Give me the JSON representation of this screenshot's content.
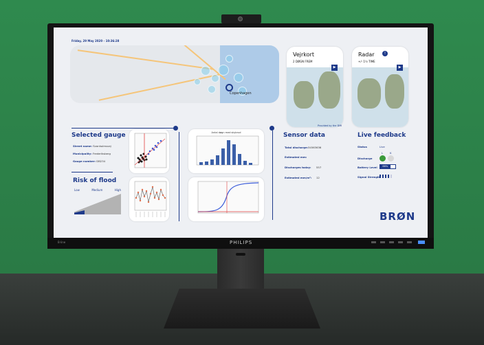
{
  "dashboard": {
    "date": "Friday, 29 May 2020 - 10:36:28",
    "map": {
      "city_label": "Copenhagen"
    },
    "weather_cards": [
      {
        "title": "Vejrkort",
        "subtitle": "2 DØGN FREM"
      },
      {
        "title": "Radar",
        "subtitle": "+/- 1½ TIME"
      }
    ],
    "provided_by": "Provided by the DMI",
    "selected_gauge": {
      "title": "Selected gauge",
      "street_label": "Street name:",
      "street_value": "Svanholmsvej",
      "municipality_label": "Municipality:",
      "municipality_value": "Frederiksberg",
      "gauge_label": "Gauge number:",
      "gauge_value": "DB234"
    },
    "risk": {
      "title": "Risk of flood",
      "levels": [
        "Low",
        "Medium",
        "High"
      ],
      "level_fraction": 0.22
    },
    "sensor": {
      "title": "Sensor data",
      "rows": [
        {
          "label": "Total discharge:",
          "value": "34563636"
        },
        {
          "label": "Estimated mm:",
          "value": ""
        },
        {
          "label": "Discharges today:",
          "value": "557"
        },
        {
          "label": "Estimated mm/m²:",
          "value": "12"
        }
      ]
    },
    "live": {
      "title": "Live feedback",
      "status_label": "Status",
      "status_value": "Live",
      "col_l": "L",
      "col_k": "K",
      "discharge_label": "Discharge",
      "battery_label": "Battery Level",
      "battery_value": "66%",
      "battery_fraction": 0.66,
      "signal_label": "Signal Strength",
      "signal_bars": 4,
      "signal_total": 5
    },
    "logo": "BRØN",
    "chart_titles": {
      "histogram": "Antal døgn med skybrud"
    }
  },
  "monitor": {
    "brand": "PHILIPS",
    "model": "B·line"
  },
  "colors": {
    "accent": "#1e3a8a",
    "wall": "#2f8a4e",
    "green_status": "#3a9a3a"
  }
}
